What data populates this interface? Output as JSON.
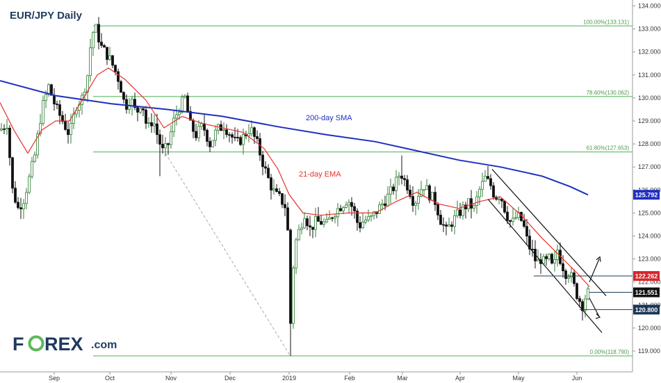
{
  "chart_data": {
    "type": "candlestick",
    "title": "EUR/JPY Daily",
    "y_ticks": [
      "119.000",
      "120.000",
      "121.000",
      "122.000",
      "123.000",
      "124.000",
      "125.000",
      "126.000",
      "127.000",
      "128.000",
      "129.000",
      "130.000",
      "131.000",
      "132.000",
      "133.000",
      "134.000"
    ],
    "ylim": [
      118.5,
      134.2
    ],
    "x_labels": [
      "Sep",
      "Oct",
      "Nov",
      "Dec",
      "2019",
      "Feb",
      "Mar",
      "Apr",
      "May",
      "Jun"
    ],
    "fib_levels": [
      {
        "label": "100.00%(133.131)",
        "value": 133.131
      },
      {
        "label": "78.60%(130.062)",
        "value": 130.062
      },
      {
        "label": "61.80%(127.653)",
        "value": 127.653
      },
      {
        "label": "0.00%(118.790)",
        "value": 118.79
      }
    ],
    "series": [
      {
        "name": "200-day SMA",
        "color": "#1f2fbf"
      },
      {
        "name": "21-day EMA",
        "color": "#e8302a"
      }
    ],
    "price_badges": [
      {
        "label": "125.792",
        "value": 125.792,
        "color": "#1f2fbf"
      },
      {
        "label": "122.262",
        "value": 122.262,
        "color": "#d7262b"
      },
      {
        "label": "121.551",
        "value": 121.551,
        "color": "#111111"
      },
      {
        "label": "120.800",
        "value": 120.8,
        "color": "#1a3557"
      }
    ],
    "horizontal_levels": [
      122.262,
      121.551,
      120.8
    ],
    "grid": false,
    "colors": {
      "candle_up": "#2f7d33",
      "candle_down": "#111111",
      "fib": "#4caf50",
      "channel": "#111111",
      "dashed": "#aaaaaa"
    }
  },
  "labels": {
    "sma": "200-day SMA",
    "ema": "21-day EMA"
  },
  "brand": {
    "logo_part1": "F",
    "logo_part2": "REX",
    "logo_suffix": ".com",
    "logo_color_main": "#1f3a5f",
    "logo_color_accent": "#5cb85c"
  }
}
